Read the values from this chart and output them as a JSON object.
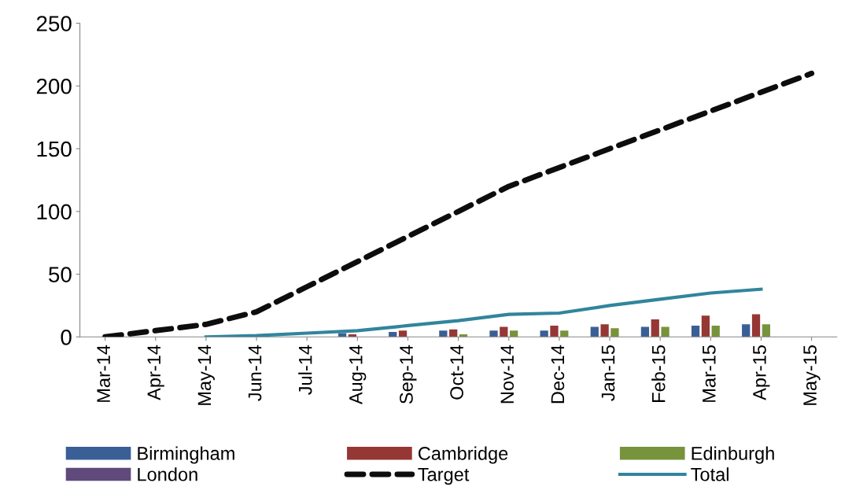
{
  "chart_data": {
    "type": "bar",
    "categories": [
      "Mar-14",
      "Apr-14",
      "May-14",
      "Jun-14",
      "Jul-14",
      "Aug-14",
      "Sep-14",
      "Oct-14",
      "Nov-14",
      "Dec-14",
      "Jan-15",
      "Feb-15",
      "Mar-15",
      "Apr-15",
      "May-15"
    ],
    "series": [
      {
        "name": "Birmingham",
        "color": "#3a5f96",
        "values": [
          null,
          null,
          null,
          null,
          null,
          3,
          4,
          5,
          5,
          5,
          8,
          8,
          9,
          10,
          null
        ]
      },
      {
        "name": "Cambridge",
        "color": "#953735",
        "values": [
          null,
          null,
          null,
          null,
          null,
          2,
          5,
          6,
          8,
          9,
          10,
          14,
          17,
          18,
          null
        ]
      },
      {
        "name": "Edinburgh",
        "color": "#77933c",
        "values": [
          null,
          null,
          null,
          null,
          null,
          null,
          null,
          2,
          5,
          5,
          7,
          8,
          9,
          10,
          null
        ]
      },
      {
        "name": "London",
        "color": "#5f4a7b",
        "values": [
          null,
          null,
          null,
          null,
          null,
          null,
          null,
          null,
          null,
          null,
          null,
          null,
          null,
          null,
          null
        ]
      },
      {
        "name": "Target",
        "type": "line",
        "line_style": "dashed",
        "color": "#0d0d0d",
        "values": [
          0,
          5,
          10,
          20,
          40,
          60,
          80,
          100,
          120,
          135,
          150,
          165,
          180,
          195,
          210
        ]
      },
      {
        "name": "Total",
        "type": "line",
        "line_style": "solid",
        "color": "#31859c",
        "values": [
          null,
          null,
          0,
          1,
          3,
          5,
          9,
          13,
          18,
          19,
          25,
          30,
          35,
          38,
          null
        ]
      }
    ],
    "ylim": [
      0,
      250
    ],
    "yticks": [
      0,
      50,
      100,
      150,
      200,
      250
    ],
    "grid": false,
    "legend": "bottom"
  }
}
